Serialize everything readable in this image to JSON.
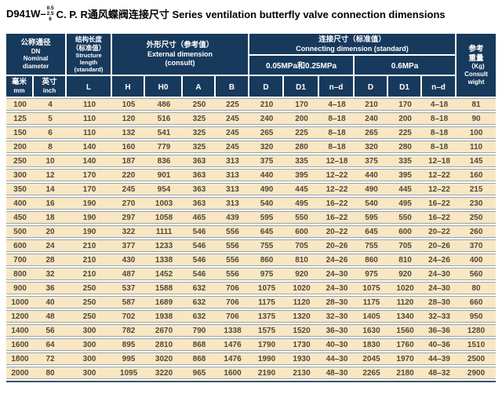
{
  "title": {
    "model": "D941W–",
    "pressure_stack": [
      "0.5",
      "2.5",
      "6"
    ],
    "text": "C. P. R通风蝶阀连接尺寸 Series ventilation butterfly valve connection dimensions"
  },
  "colors": {
    "header_bg": "#17395C",
    "row_bg": "#F8E7C2",
    "separator": "#97A5B1",
    "body_text": "#4E483E"
  },
  "table": {
    "headers": {
      "dn_zh": "公称通径",
      "dn_en": "DN\nNominal\ndiameter",
      "mm_zh": "毫米",
      "mm_en": "mm",
      "inch_zh": "英寸",
      "inch_en": "inch",
      "len_zh": "结构长度\n（标准值）",
      "len_en": "Structure\nlength\n(standard)",
      "l": "L",
      "ext_zh": "外形尺寸（参考值）",
      "ext_en": "External dimension\n(consult)",
      "h": "H",
      "h0": "H0",
      "a": "A",
      "b": "B",
      "conn_zh": "连接尺寸（标准值）",
      "conn_en": "Connecting dimension (standard)",
      "p_low": "0.05MPa和0.25MPa",
      "p_high": "0.6MPa",
      "d": "D",
      "d1": "D1",
      "nd": "n–d",
      "wt_zh": "参考\n重量",
      "wt_en": "（Kg)\nConsult\nwight"
    },
    "rows": [
      [
        "100",
        "4",
        "110",
        "105",
        "486",
        "250",
        "225",
        "210",
        "170",
        "4–18",
        "210",
        "170",
        "4–18",
        "81"
      ],
      [
        "125",
        "5",
        "110",
        "120",
        "516",
        "325",
        "245",
        "240",
        "200",
        "8–18",
        "240",
        "200",
        "8–18",
        "90"
      ],
      [
        "150",
        "6",
        "110",
        "132",
        "541",
        "325",
        "245",
        "265",
        "225",
        "8–18",
        "265",
        "225",
        "8–18",
        "100"
      ],
      [
        "200",
        "8",
        "140",
        "160",
        "779",
        "325",
        "245",
        "320",
        "280",
        "8–18",
        "320",
        "280",
        "8–18",
        "110"
      ],
      [
        "250",
        "10",
        "140",
        "187",
        "836",
        "363",
        "313",
        "375",
        "335",
        "12–18",
        "375",
        "335",
        "12–18",
        "145"
      ],
      [
        "300",
        "12",
        "170",
        "220",
        "901",
        "363",
        "313",
        "440",
        "395",
        "12–22",
        "440",
        "395",
        "12–22",
        "160"
      ],
      [
        "350",
        "14",
        "170",
        "245",
        "954",
        "363",
        "313",
        "490",
        "445",
        "12–22",
        "490",
        "445",
        "12–22",
        "215"
      ],
      [
        "400",
        "16",
        "190",
        "270",
        "1003",
        "363",
        "313",
        "540",
        "495",
        "16–22",
        "540",
        "495",
        "16–22",
        "230"
      ],
      [
        "450",
        "18",
        "190",
        "297",
        "1058",
        "465",
        "439",
        "595",
        "550",
        "16–22",
        "595",
        "550",
        "16–22",
        "250"
      ],
      [
        "500",
        "20",
        "190",
        "322",
        "1111",
        "546",
        "556",
        "645",
        "600",
        "20–22",
        "645",
        "600",
        "20–22",
        "260"
      ],
      [
        "600",
        "24",
        "210",
        "377",
        "1233",
        "546",
        "556",
        "755",
        "705",
        "20–26",
        "755",
        "705",
        "20–26",
        "370"
      ],
      [
        "700",
        "28",
        "210",
        "430",
        "1338",
        "546",
        "556",
        "860",
        "810",
        "24–26",
        "860",
        "810",
        "24–26",
        "400"
      ],
      [
        "800",
        "32",
        "210",
        "487",
        "1452",
        "546",
        "556",
        "975",
        "920",
        "24–30",
        "975",
        "920",
        "24–30",
        "560"
      ],
      [
        "900",
        "36",
        "250",
        "537",
        "1588",
        "632",
        "706",
        "1075",
        "1020",
        "24–30",
        "1075",
        "1020",
        "24–30",
        "80"
      ],
      [
        "1000",
        "40",
        "250",
        "587",
        "1689",
        "632",
        "706",
        "1175",
        "1120",
        "28–30",
        "1175",
        "1120",
        "28–30",
        "660"
      ],
      [
        "1200",
        "48",
        "250",
        "702",
        "1938",
        "632",
        "706",
        "1375",
        "1320",
        "32–30",
        "1405",
        "1340",
        "32–33",
        "950"
      ],
      [
        "1400",
        "56",
        "300",
        "782",
        "2670",
        "790",
        "1338",
        "1575",
        "1520",
        "36–30",
        "1630",
        "1560",
        "36–36",
        "1280"
      ],
      [
        "1600",
        "64",
        "300",
        "895",
        "2810",
        "868",
        "1476",
        "1790",
        "1730",
        "40–30",
        "1830",
        "1760",
        "40–36",
        "1510"
      ],
      [
        "1800",
        "72",
        "300",
        "995",
        "3020",
        "868",
        "1476",
        "1990",
        "1930",
        "44–30",
        "2045",
        "1970",
        "44–39",
        "2500"
      ],
      [
        "2000",
        "80",
        "300",
        "1095",
        "3220",
        "965",
        "1600",
        "2190",
        "2130",
        "48–30",
        "2265",
        "2180",
        "48–32",
        "2900"
      ]
    ]
  }
}
